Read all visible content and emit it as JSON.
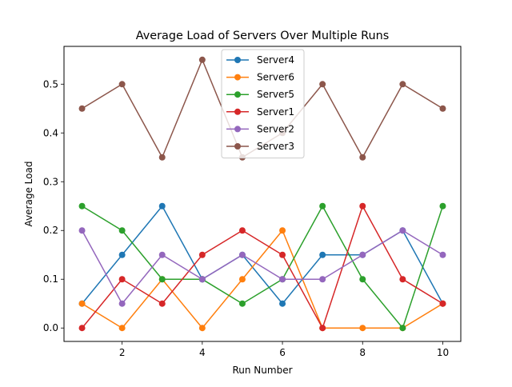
{
  "chart_data": {
    "type": "line",
    "title": "Average Load of Servers Over Multiple Runs",
    "xlabel": "Run Number",
    "ylabel": "Average Load",
    "x": [
      1,
      2,
      3,
      4,
      5,
      6,
      7,
      8,
      9,
      10
    ],
    "xlim": [
      0.55,
      10.45
    ],
    "ylim": [
      -0.0275,
      0.5775
    ],
    "xticks": [
      2,
      4,
      6,
      8,
      10
    ],
    "yticks": [
      0.0,
      0.1,
      0.2,
      0.3,
      0.4,
      0.5
    ],
    "xtick_labels": [
      "2",
      "4",
      "6",
      "8",
      "10"
    ],
    "ytick_labels": [
      "0.0",
      "0.1",
      "0.2",
      "0.3",
      "0.4",
      "0.5"
    ],
    "grid": false,
    "legend_position": "top-center",
    "series": [
      {
        "name": "Server4",
        "color": "#1f77b4",
        "values": [
          0.05,
          0.15,
          0.25,
          0.1,
          0.15,
          0.05,
          0.15,
          0.15,
          0.2,
          0.05
        ]
      },
      {
        "name": "Server6",
        "color": "#ff7f0e",
        "values": [
          0.05,
          0.0,
          0.1,
          0.0,
          0.1,
          0.2,
          0.0,
          0.0,
          0.0,
          0.05
        ]
      },
      {
        "name": "Server5",
        "color": "#2ca02c",
        "values": [
          0.25,
          0.2,
          0.1,
          0.1,
          0.05,
          0.1,
          0.25,
          0.1,
          0.0,
          0.25
        ]
      },
      {
        "name": "Server1",
        "color": "#d62728",
        "values": [
          0.0,
          0.1,
          0.05,
          0.15,
          0.2,
          0.15,
          0.0,
          0.25,
          0.1,
          0.05
        ]
      },
      {
        "name": "Server2",
        "color": "#9467bd",
        "values": [
          0.2,
          0.05,
          0.15,
          0.1,
          0.15,
          0.1,
          0.1,
          0.15,
          0.2,
          0.15
        ]
      },
      {
        "name": "Server3",
        "color": "#8c564b",
        "values": [
          0.45,
          0.5,
          0.35,
          0.55,
          0.35,
          0.4,
          0.5,
          0.35,
          0.5,
          0.45
        ]
      }
    ]
  }
}
